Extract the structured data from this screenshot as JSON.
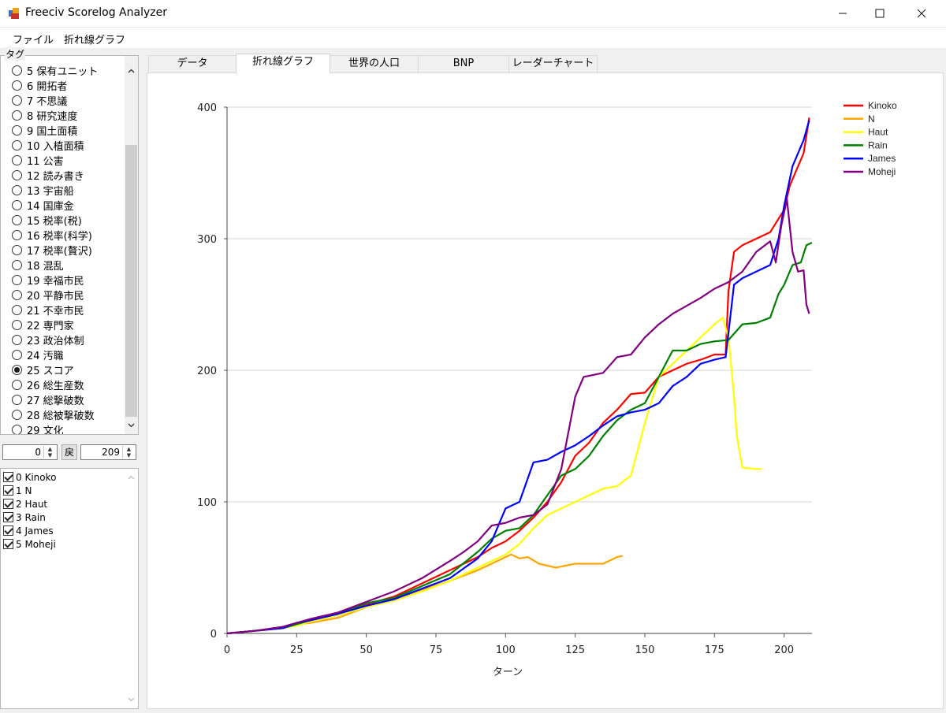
{
  "window": {
    "title": "Freeciv Scorelog Analyzer"
  },
  "menu": {
    "items": [
      "ファイル",
      "折れ線グラフ"
    ]
  },
  "sidebar": {
    "tag_label": "タグ",
    "tags": [
      {
        "label": "5 保有ユニット",
        "checked": false
      },
      {
        "label": "6 開拓者",
        "checked": false
      },
      {
        "label": "7 不思議",
        "checked": false
      },
      {
        "label": "8 研究速度",
        "checked": false
      },
      {
        "label": "9 国土面積",
        "checked": false
      },
      {
        "label": "10 入植面積",
        "checked": false
      },
      {
        "label": "11 公害",
        "checked": false
      },
      {
        "label": "12 読み書き",
        "checked": false
      },
      {
        "label": "13 宇宙船",
        "checked": false
      },
      {
        "label": "14 国庫金",
        "checked": false
      },
      {
        "label": "15 税率(税)",
        "checked": false
      },
      {
        "label": "16 税率(科学)",
        "checked": false
      },
      {
        "label": "17 税率(贅沢)",
        "checked": false
      },
      {
        "label": "18 混乱",
        "checked": false
      },
      {
        "label": "19 幸福市民",
        "checked": false
      },
      {
        "label": "20 平静市民",
        "checked": false
      },
      {
        "label": "21 不幸市民",
        "checked": false
      },
      {
        "label": "22 専門家",
        "checked": false
      },
      {
        "label": "23 政治体制",
        "checked": false
      },
      {
        "label": "24 汚職",
        "checked": false
      },
      {
        "label": "25 スコア",
        "checked": true
      },
      {
        "label": "26 総生産数",
        "checked": false
      },
      {
        "label": "27 総撃破数",
        "checked": false
      },
      {
        "label": "28 総被撃破数",
        "checked": false
      },
      {
        "label": "29 文化",
        "checked": false
      }
    ],
    "range": {
      "start": "0",
      "back_label": "戻",
      "end": "209"
    },
    "players": [
      {
        "label": "0 Kinoko",
        "checked": true
      },
      {
        "label": "1 N",
        "checked": true
      },
      {
        "label": "2 Haut",
        "checked": true
      },
      {
        "label": "3 Rain",
        "checked": true
      },
      {
        "label": "4 James",
        "checked": true
      },
      {
        "label": "5 Moheji",
        "checked": true
      }
    ]
  },
  "tabs": [
    {
      "label": "データ",
      "active": false
    },
    {
      "label": "折れ線グラフ",
      "active": true
    },
    {
      "label": "世界の人口",
      "active": false
    },
    {
      "label": "BNP",
      "active": false
    },
    {
      "label": "レーダーチャート",
      "active": false
    }
  ],
  "chart_data": {
    "type": "line",
    "title": "",
    "xlabel": "ターン",
    "ylabel": "",
    "xlim": [
      0,
      210
    ],
    "ylim": [
      0,
      400
    ],
    "xticks": [
      0,
      25,
      50,
      75,
      100,
      125,
      150,
      175,
      200
    ],
    "yticks": [
      0,
      100,
      200,
      300,
      400
    ],
    "grid": "horizontal",
    "legend": "top-right",
    "series": [
      {
        "name": "Kinoko",
        "color": "#ff0000",
        "points": [
          [
            0,
            0
          ],
          [
            10,
            2
          ],
          [
            20,
            4
          ],
          [
            25,
            8
          ],
          [
            30,
            10
          ],
          [
            40,
            15
          ],
          [
            50,
            22
          ],
          [
            60,
            28
          ],
          [
            70,
            38
          ],
          [
            80,
            48
          ],
          [
            90,
            58
          ],
          [
            95,
            65
          ],
          [
            100,
            70
          ],
          [
            105,
            78
          ],
          [
            110,
            88
          ],
          [
            115,
            100
          ],
          [
            120,
            115
          ],
          [
            125,
            135
          ],
          [
            130,
            145
          ],
          [
            135,
            160
          ],
          [
            140,
            170
          ],
          [
            145,
            182
          ],
          [
            150,
            183
          ],
          [
            155,
            195
          ],
          [
            160,
            200
          ],
          [
            165,
            205
          ],
          [
            170,
            208
          ],
          [
            175,
            212
          ],
          [
            179,
            212
          ],
          [
            180,
            260
          ],
          [
            182,
            290
          ],
          [
            185,
            295
          ],
          [
            190,
            300
          ],
          [
            195,
            305
          ],
          [
            200,
            322
          ],
          [
            202,
            340
          ],
          [
            205,
            355
          ],
          [
            207,
            365
          ],
          [
            209,
            392
          ]
        ]
      },
      {
        "name": "N",
        "color": "#ffa500",
        "points": [
          [
            0,
            0
          ],
          [
            10,
            2
          ],
          [
            20,
            4
          ],
          [
            25,
            7
          ],
          [
            30,
            8
          ],
          [
            40,
            12
          ],
          [
            50,
            20
          ],
          [
            60,
            26
          ],
          [
            70,
            33
          ],
          [
            80,
            40
          ],
          [
            90,
            48
          ],
          [
            95,
            53
          ],
          [
            100,
            58
          ],
          [
            102,
            60
          ],
          [
            105,
            57
          ],
          [
            108,
            58
          ],
          [
            112,
            53
          ],
          [
            118,
            50
          ],
          [
            125,
            53
          ],
          [
            135,
            53
          ],
          [
            140,
            58
          ],
          [
            142,
            59
          ]
        ]
      },
      {
        "name": "Haut",
        "color": "#ffff00",
        "points": [
          [
            0,
            0
          ],
          [
            10,
            2
          ],
          [
            20,
            4
          ],
          [
            25,
            6
          ],
          [
            30,
            9
          ],
          [
            40,
            14
          ],
          [
            50,
            20
          ],
          [
            60,
            25
          ],
          [
            70,
            32
          ],
          [
            80,
            40
          ],
          [
            90,
            50
          ],
          [
            100,
            60
          ],
          [
            105,
            68
          ],
          [
            110,
            80
          ],
          [
            115,
            90
          ],
          [
            120,
            95
          ],
          [
            125,
            100
          ],
          [
            130,
            105
          ],
          [
            135,
            110
          ],
          [
            140,
            112
          ],
          [
            145,
            120
          ],
          [
            150,
            160
          ],
          [
            155,
            195
          ],
          [
            160,
            205
          ],
          [
            165,
            215
          ],
          [
            170,
            225
          ],
          [
            175,
            235
          ],
          [
            178,
            240
          ],
          [
            180,
            225
          ],
          [
            182,
            180
          ],
          [
            183,
            150
          ],
          [
            185,
            126
          ],
          [
            190,
            125
          ],
          [
            192,
            125
          ]
        ]
      },
      {
        "name": "Rain",
        "color": "#008000",
        "points": [
          [
            0,
            0
          ],
          [
            10,
            2
          ],
          [
            20,
            4
          ],
          [
            25,
            7
          ],
          [
            30,
            10
          ],
          [
            40,
            15
          ],
          [
            50,
            23
          ],
          [
            60,
            27
          ],
          [
            70,
            36
          ],
          [
            80,
            45
          ],
          [
            90,
            62
          ],
          [
            95,
            72
          ],
          [
            100,
            78
          ],
          [
            105,
            80
          ],
          [
            110,
            90
          ],
          [
            115,
            105
          ],
          [
            120,
            120
          ],
          [
            125,
            125
          ],
          [
            130,
            135
          ],
          [
            135,
            150
          ],
          [
            140,
            162
          ],
          [
            145,
            170
          ],
          [
            150,
            175
          ],
          [
            155,
            195
          ],
          [
            160,
            215
          ],
          [
            165,
            215
          ],
          [
            170,
            220
          ],
          [
            175,
            222
          ],
          [
            180,
            223
          ],
          [
            185,
            235
          ],
          [
            190,
            236
          ],
          [
            195,
            240
          ],
          [
            198,
            258
          ],
          [
            200,
            265
          ],
          [
            203,
            280
          ],
          [
            206,
            282
          ],
          [
            208,
            295
          ],
          [
            210,
            297
          ]
        ]
      },
      {
        "name": "James",
        "color": "#0000ff",
        "points": [
          [
            0,
            0
          ],
          [
            10,
            2
          ],
          [
            20,
            4
          ],
          [
            25,
            8
          ],
          [
            30,
            10
          ],
          [
            40,
            15
          ],
          [
            50,
            21
          ],
          [
            60,
            26
          ],
          [
            70,
            34
          ],
          [
            80,
            42
          ],
          [
            90,
            57
          ],
          [
            95,
            70
          ],
          [
            100,
            95
          ],
          [
            105,
            100
          ],
          [
            110,
            130
          ],
          [
            115,
            132
          ],
          [
            120,
            138
          ],
          [
            125,
            143
          ],
          [
            130,
            150
          ],
          [
            135,
            158
          ],
          [
            140,
            165
          ],
          [
            145,
            168
          ],
          [
            150,
            170
          ],
          [
            155,
            175
          ],
          [
            160,
            188
          ],
          [
            165,
            195
          ],
          [
            170,
            205
          ],
          [
            175,
            208
          ],
          [
            179,
            210
          ],
          [
            182,
            265
          ],
          [
            185,
            270
          ],
          [
            190,
            275
          ],
          [
            195,
            280
          ],
          [
            198,
            300
          ],
          [
            200,
            325
          ],
          [
            203,
            355
          ],
          [
            205,
            365
          ],
          [
            207,
            375
          ],
          [
            209,
            390
          ]
        ]
      },
      {
        "name": "Moheji",
        "color": "#800080",
        "points": [
          [
            0,
            0
          ],
          [
            10,
            2
          ],
          [
            20,
            5
          ],
          [
            25,
            8
          ],
          [
            30,
            11
          ],
          [
            40,
            16
          ],
          [
            50,
            24
          ],
          [
            60,
            32
          ],
          [
            70,
            42
          ],
          [
            80,
            55
          ],
          [
            85,
            62
          ],
          [
            90,
            70
          ],
          [
            95,
            82
          ],
          [
            100,
            84
          ],
          [
            105,
            88
          ],
          [
            110,
            90
          ],
          [
            115,
            98
          ],
          [
            120,
            125
          ],
          [
            125,
            180
          ],
          [
            128,
            195
          ],
          [
            135,
            198
          ],
          [
            140,
            210
          ],
          [
            145,
            212
          ],
          [
            150,
            225
          ],
          [
            155,
            235
          ],
          [
            160,
            243
          ],
          [
            170,
            255
          ],
          [
            175,
            262
          ],
          [
            180,
            267
          ],
          [
            185,
            275
          ],
          [
            190,
            290
          ],
          [
            195,
            298
          ],
          [
            197,
            282
          ],
          [
            199,
            310
          ],
          [
            201,
            330
          ],
          [
            203,
            290
          ],
          [
            205,
            275
          ],
          [
            207,
            276
          ],
          [
            208,
            250
          ],
          [
            209,
            243
          ]
        ]
      }
    ]
  }
}
